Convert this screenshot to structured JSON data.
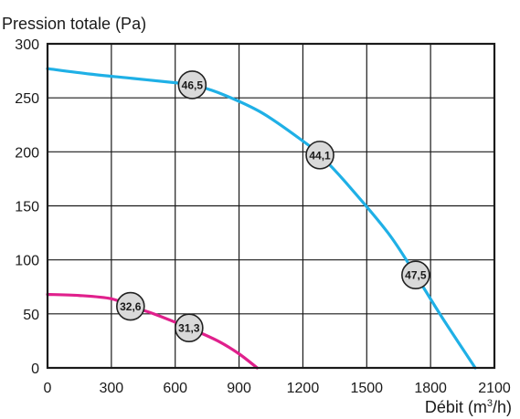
{
  "chart_data": {
    "type": "line",
    "ylabel": "Pression totale (Pa)",
    "xlabel_main": "Débit (m",
    "xlabel_sup": "3",
    "xlabel_end": "/h)",
    "xlim": [
      0,
      2100
    ],
    "ylim": [
      0,
      300
    ],
    "x_ticks": [
      "0",
      "300",
      "600",
      "900",
      "1200",
      "1500",
      "1800",
      "2100"
    ],
    "y_ticks": [
      "0",
      "50",
      "100",
      "150",
      "200",
      "250",
      "300"
    ],
    "grid": true,
    "colors": {
      "blue": "#1fb0e6",
      "pink": "#e0208c",
      "marker_fill": "#d9d9d9",
      "marker_stroke": "#222222"
    },
    "series": [
      {
        "color": "#1fb0e6",
        "x": [
          0,
          200,
          400,
          600,
          680,
          800,
          1000,
          1200,
          1280,
          1400,
          1600,
          1730,
          1850,
          2010
        ],
        "y": [
          277,
          272,
          268,
          264,
          262,
          255,
          237,
          210,
          197,
          172,
          125,
          86,
          48,
          0
        ]
      },
      {
        "color": "#e0208c",
        "x": [
          0,
          150,
          300,
          390,
          500,
          665,
          800,
          900,
          985
        ],
        "y": [
          68,
          67,
          64,
          57,
          50,
          37,
          25,
          13,
          0
        ]
      }
    ],
    "markers": [
      {
        "x": 680,
        "y": 262,
        "label": "46,5"
      },
      {
        "x": 1280,
        "y": 197,
        "label": "44,1"
      },
      {
        "x": 1730,
        "y": 86,
        "label": "47,5"
      },
      {
        "x": 390,
        "y": 57,
        "label": "32,6"
      },
      {
        "x": 665,
        "y": 37,
        "label": "31,3"
      }
    ]
  }
}
